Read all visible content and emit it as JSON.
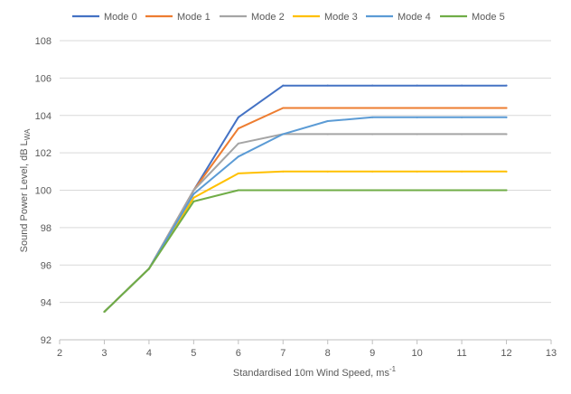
{
  "chart_data": {
    "type": "line",
    "title": "",
    "xlabel": "Standardised 10m Wind Speed, ms",
    "xlabel_sup": "-1",
    "ylabel": "Sound Power Level, dB L",
    "ylabel_sub": "WA",
    "xlim": [
      2,
      13
    ],
    "ylim": [
      92,
      108
    ],
    "x_ticks": [
      2,
      3,
      4,
      5,
      6,
      7,
      8,
      9,
      10,
      11,
      12,
      13
    ],
    "y_ticks": [
      92,
      94,
      96,
      98,
      100,
      102,
      104,
      106,
      108
    ],
    "grid": "horizontal",
    "legend_position": "top",
    "x": [
      3,
      4,
      5,
      6,
      7,
      8,
      9,
      10,
      11,
      12
    ],
    "series": [
      {
        "name": "Mode 0",
        "color": "#4472C4",
        "values": [
          93.5,
          95.8,
          100.0,
          103.9,
          105.6,
          105.6,
          105.6,
          105.6,
          105.6,
          105.6
        ]
      },
      {
        "name": "Mode 1",
        "color": "#ED7D31",
        "values": [
          93.5,
          95.8,
          100.0,
          103.3,
          104.4,
          104.4,
          104.4,
          104.4,
          104.4,
          104.4
        ]
      },
      {
        "name": "Mode 2",
        "color": "#A5A5A5",
        "values": [
          93.5,
          95.8,
          100.0,
          102.5,
          103.0,
          103.0,
          103.0,
          103.0,
          103.0,
          103.0
        ]
      },
      {
        "name": "Mode 3",
        "color": "#FFC000",
        "values": [
          93.5,
          95.8,
          99.6,
          100.9,
          101.0,
          101.0,
          101.0,
          101.0,
          101.0,
          101.0
        ]
      },
      {
        "name": "Mode 4",
        "color": "#5B9BD5",
        "values": [
          93.5,
          95.8,
          99.8,
          101.8,
          103.0,
          103.7,
          103.9,
          103.9,
          103.9,
          103.9
        ]
      },
      {
        "name": "Mode 5",
        "color": "#70AD47",
        "values": [
          93.5,
          95.8,
          99.4,
          100.0,
          100.0,
          100.0,
          100.0,
          100.0,
          100.0,
          100.0
        ]
      }
    ]
  }
}
